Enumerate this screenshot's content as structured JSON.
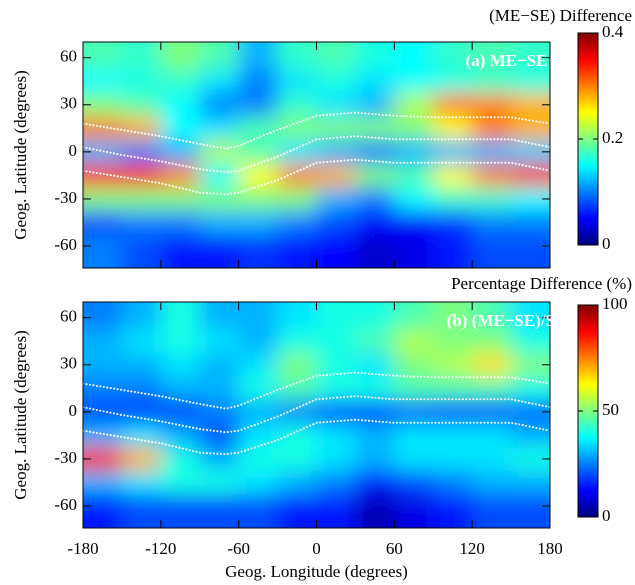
{
  "chart_data": [
    {
      "type": "heatmap",
      "label": "(a) ME−SE",
      "colorbar_title": "(ME−SE) Difference",
      "ylabel": "Geog. Latitude (degrees)",
      "show_xticklabels": false,
      "x": [
        -165,
        -135,
        -105,
        -75,
        -45,
        -15,
        15,
        45,
        75,
        105,
        135,
        165
      ],
      "y": [
        60,
        45,
        30,
        15,
        0,
        -15,
        -30,
        -45,
        -60
      ],
      "z": [
        [
          0.18,
          0.17,
          0.2,
          0.18,
          0.12,
          0.17,
          0.18,
          0.16,
          0.15,
          0.17,
          0.18,
          0.17
        ],
        [
          0.15,
          0.16,
          0.17,
          0.14,
          0.1,
          0.14,
          0.16,
          0.14,
          0.15,
          0.16,
          0.17,
          0.16
        ],
        [
          0.2,
          0.18,
          0.15,
          0.1,
          0.1,
          0.17,
          0.14,
          0.12,
          0.22,
          0.3,
          0.3,
          0.28
        ],
        [
          0.3,
          0.28,
          0.15,
          0.14,
          0.18,
          0.2,
          0.2,
          0.2,
          0.2,
          0.25,
          0.3,
          0.28
        ],
        [
          0.12,
          0.1,
          0.12,
          0.22,
          0.18,
          0.14,
          0.12,
          0.1,
          0.12,
          0.12,
          0.12,
          0.13
        ],
        [
          0.35,
          0.35,
          0.3,
          0.15,
          0.25,
          0.3,
          0.28,
          0.2,
          0.18,
          0.25,
          0.3,
          0.33
        ],
        [
          0.2,
          0.2,
          0.2,
          0.2,
          0.2,
          0.2,
          0.12,
          0.1,
          0.15,
          0.17,
          0.17,
          0.15
        ],
        [
          0.08,
          0.1,
          0.1,
          0.12,
          0.12,
          0.1,
          0.08,
          0.05,
          0.05,
          0.07,
          0.1,
          0.1
        ],
        [
          0.1,
          0.08,
          0.06,
          0.06,
          0.07,
          0.06,
          0.05,
          0.03,
          0.04,
          0.06,
          0.08,
          0.08
        ]
      ],
      "zlim": [
        0,
        0.4
      ],
      "zticks": [
        0,
        0.2,
        {
          "value": 0.4,
          "label": "0.4"
        }
      ],
      "colorscale": [
        "#00007f",
        "#0000ff",
        "#007fff",
        "#00ffff",
        "#7fff7f",
        "#ffff00",
        "#ff7f00",
        "#ff0000",
        "#7f0000"
      ],
      "xlim": [
        -180,
        180
      ],
      "xticks": [
        -180,
        -120,
        -60,
        0,
        60,
        120,
        180
      ],
      "ylim": [
        -74,
        70
      ],
      "yticks": [
        -60,
        -30,
        0,
        30,
        60
      ],
      "contours": [
        {
          "color": "#ffffff",
          "x": [
            -180,
            -150,
            -120,
            -90,
            -70,
            -60,
            -30,
            0,
            30,
            60,
            90,
            120,
            150,
            180
          ],
          "values": [
            18,
            14,
            10,
            5,
            2,
            4,
            14,
            23,
            25,
            23,
            22,
            22,
            22,
            18
          ]
        },
        {
          "color": "#ffffff",
          "x": [
            -180,
            -150,
            -120,
            -90,
            -70,
            -60,
            -30,
            0,
            30,
            60,
            90,
            120,
            150,
            180
          ],
          "values": [
            3,
            -2,
            -6,
            -11,
            -13,
            -12,
            -3,
            8,
            10,
            8,
            8,
            8,
            8,
            3
          ]
        },
        {
          "color": "#ffffff",
          "x": [
            -180,
            -150,
            -120,
            -90,
            -70,
            -60,
            -30,
            0,
            30,
            60,
            90,
            120,
            150,
            180
          ],
          "values": [
            -12,
            -16,
            -20,
            -26,
            -27,
            -26,
            -18,
            -7,
            -5,
            -7,
            -7,
            -7,
            -7,
            -12
          ]
        }
      ]
    },
    {
      "type": "heatmap",
      "label": "(b) (ME−SE)/SE",
      "colorbar_title": "Percentage Difference (%)",
      "ylabel": "Geog. Latitude (degrees)",
      "xlabel": "Geog. Longitude (degrees)",
      "show_xticklabels": true,
      "x": [
        -165,
        -135,
        -105,
        -75,
        -45,
        -15,
        15,
        45,
        75,
        105,
        135,
        165
      ],
      "y": [
        60,
        45,
        30,
        15,
        0,
        -15,
        -30,
        -45,
        -60
      ],
      "z": [
        [
          25,
          30,
          40,
          30,
          30,
          35,
          40,
          40,
          45,
          50,
          45,
          35
        ],
        [
          30,
          35,
          40,
          35,
          30,
          40,
          40,
          45,
          55,
          50,
          50,
          40
        ],
        [
          30,
          30,
          35,
          30,
          35,
          50,
          40,
          35,
          50,
          55,
          65,
          50
        ],
        [
          25,
          25,
          30,
          30,
          40,
          45,
          40,
          40,
          45,
          45,
          45,
          40
        ],
        [
          20,
          18,
          18,
          25,
          30,
          25,
          20,
          20,
          22,
          20,
          20,
          22
        ],
        [
          30,
          35,
          30,
          20,
          35,
          40,
          35,
          30,
          35,
          35,
          35,
          30
        ],
        [
          85,
          70,
          40,
          30,
          40,
          40,
          35,
          30,
          35,
          35,
          35,
          40
        ],
        [
          30,
          35,
          40,
          40,
          35,
          30,
          25,
          15,
          20,
          25,
          30,
          30
        ],
        [
          15,
          20,
          20,
          20,
          20,
          15,
          15,
          5,
          10,
          15,
          20,
          20
        ]
      ],
      "zlim": [
        0,
        100
      ],
      "zticks": [
        0,
        50,
        100
      ],
      "colorscale": [
        "#00007f",
        "#0000ff",
        "#007fff",
        "#00ffff",
        "#7fff7f",
        "#ffff00",
        "#ff7f00",
        "#ff0000",
        "#7f0000"
      ],
      "xlim": [
        -180,
        180
      ],
      "xticks": [
        -180,
        -120,
        -60,
        0,
        60,
        120,
        180
      ],
      "ylim": [
        -74,
        70
      ],
      "yticks": [
        -60,
        -30,
        0,
        30,
        60
      ],
      "contours": [
        {
          "color": "#ffffff",
          "x": [
            -180,
            -150,
            -120,
            -90,
            -70,
            -60,
            -30,
            0,
            30,
            60,
            90,
            120,
            150,
            180
          ],
          "values": [
            18,
            14,
            10,
            5,
            2,
            4,
            14,
            23,
            25,
            23,
            22,
            22,
            22,
            18
          ]
        },
        {
          "color": "#ffffff",
          "x": [
            -180,
            -150,
            -120,
            -90,
            -70,
            -60,
            -30,
            0,
            30,
            60,
            90,
            120,
            150,
            180
          ],
          "values": [
            3,
            -2,
            -6,
            -11,
            -13,
            -12,
            -3,
            8,
            10,
            8,
            8,
            8,
            8,
            3
          ]
        },
        {
          "color": "#ffffff",
          "x": [
            -180,
            -150,
            -120,
            -90,
            -70,
            -60,
            -30,
            0,
            30,
            60,
            90,
            120,
            150,
            180
          ],
          "values": [
            -12,
            -16,
            -20,
            -26,
            -27,
            -26,
            -18,
            -7,
            -5,
            -7,
            -7,
            -7,
            -7,
            -12
          ]
        }
      ]
    }
  ]
}
